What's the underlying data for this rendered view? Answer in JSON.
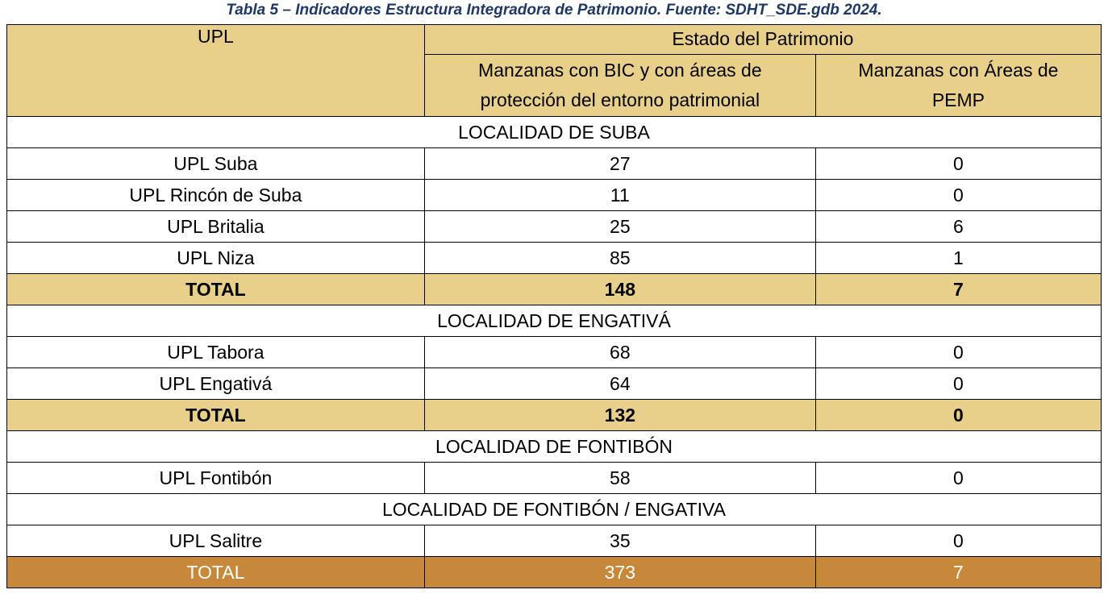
{
  "caption": "Tabla 5 – Indicadores Estructura Integradora de Patrimonio. Fuente: SDHT_SDE.gdb 2024.",
  "header": {
    "col1": "UPL",
    "group": "Estado del Patrimonio",
    "col2_line1": "Manzanas con BIC y con áreas de",
    "col2_line2": "protección del entorno patrimonial",
    "col3_line1": "Manzanas con Áreas de",
    "col3_line2": "PEMP"
  },
  "sections": {
    "suba": {
      "title": "LOCALIDAD DE SUBA",
      "rows": [
        {
          "upl": "UPL Suba",
          "bic": "27",
          "pemp": "0"
        },
        {
          "upl": "UPL Rincón de Suba",
          "bic": "11",
          "pemp": "0"
        },
        {
          "upl": "UPL Britalia",
          "bic": "25",
          "pemp": "6"
        },
        {
          "upl": "UPL Niza",
          "bic": "85",
          "pemp": "1"
        }
      ],
      "total": {
        "label": "TOTAL",
        "bic": "148",
        "pemp": "7"
      }
    },
    "engativa": {
      "title": "LOCALIDAD DE ENGATIVÁ",
      "rows": [
        {
          "upl": "UPL Tabora",
          "bic": "68",
          "pemp": "0"
        },
        {
          "upl": "UPL Engativá",
          "bic": "64",
          "pemp": "0"
        }
      ],
      "total": {
        "label": "TOTAL",
        "bic": "132",
        "pemp": "0"
      }
    },
    "fontibon": {
      "title": "LOCALIDAD DE FONTIBÓN",
      "rows": [
        {
          "upl": "UPL Fontibón",
          "bic": "58",
          "pemp": "0"
        }
      ]
    },
    "fontibon_engativa": {
      "title": "LOCALIDAD DE FONTIBÓN / ENGATIVA",
      "rows": [
        {
          "upl": "UPL Salitre",
          "bic": "35",
          "pemp": "0"
        }
      ]
    }
  },
  "grand_total": {
    "label": "TOTAL",
    "bic": "373",
    "pemp": "7"
  },
  "colors": {
    "header_bg": "#e8d08a",
    "total_bg": "#e8d08a",
    "grand_total_bg": "#c8883a",
    "caption_color": "#1f3864"
  }
}
